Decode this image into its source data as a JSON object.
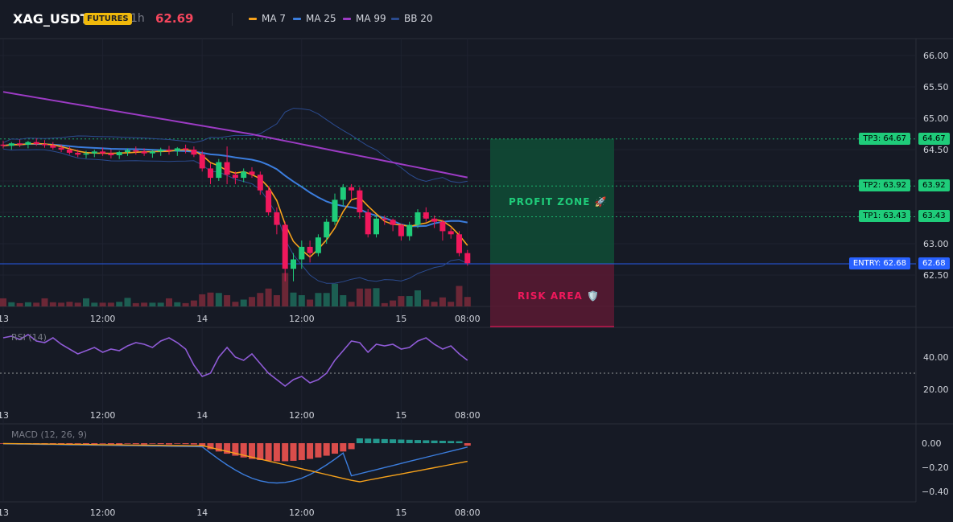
{
  "header": {
    "symbol": "XAG_USDT",
    "badge": "FUTURES",
    "timeframe": "1h",
    "price": "62.69",
    "indicators": [
      {
        "label": "MA 7",
        "color": "#f7a21b"
      },
      {
        "label": "MA 25",
        "color": "#3b7ddd"
      },
      {
        "label": "MA 99",
        "color": "#9c3bc4"
      },
      {
        "label": "BB 20",
        "color": "#2b4b8f"
      }
    ]
  },
  "x_axis": {
    "labels": [
      {
        "text": "13",
        "idx": 0
      },
      {
        "text": "12:00",
        "idx": 12
      },
      {
        "text": "14",
        "idx": 24
      },
      {
        "text": "12:00",
        "idx": 36
      },
      {
        "text": "15",
        "idx": 48
      },
      {
        "text": "08:00",
        "idx": 56
      }
    ]
  },
  "price_axis": {
    "ticks": [
      "66.00",
      "65.50",
      "65.00",
      "64.50",
      "63.00",
      "62.50"
    ]
  },
  "levels": [
    {
      "name": "tp3",
      "label": "TP3: 64.67",
      "value": 64.67,
      "value_label": "64.67"
    },
    {
      "name": "tp2",
      "label": "TP2: 63.92",
      "value": 63.92,
      "value_label": "63.92"
    },
    {
      "name": "tp1",
      "label": "TP1: 63.43",
      "value": 63.43,
      "value_label": "63.43"
    },
    {
      "name": "entry",
      "label": "ENTRY: 62.68",
      "value": 62.68,
      "value_label": "62.68"
    }
  ],
  "zones": {
    "profit_label": "PROFIT ZONE 🚀",
    "risk_label": "RISK AREA 🛡️"
  },
  "rsi": {
    "title": "RSI (14)",
    "ticks": [
      "40.00",
      "20.00"
    ]
  },
  "macd": {
    "title": "MACD (12, 26, 9)",
    "ticks": [
      "0.00",
      "−0.20",
      "−0.40"
    ]
  },
  "colors": {
    "up": "#1fcc7a",
    "down": "#f0185c",
    "profit": "#0f4d36",
    "risk": "#5a1a33",
    "entry": "#2962ff",
    "tp": "#1fcc7a"
  },
  "chart_data": {
    "type": "candlestick",
    "x": [
      "13",
      "12:00",
      "14",
      "12:00",
      "15",
      "08:00"
    ],
    "series": [
      {
        "name": "XAG_USDT",
        "ohlc": [
          [
            64.58,
            64.64,
            64.52,
            64.56
          ],
          [
            64.56,
            64.62,
            64.5,
            64.6
          ],
          [
            64.6,
            64.66,
            64.54,
            64.58
          ],
          [
            64.58,
            64.64,
            64.52,
            64.62
          ],
          [
            64.62,
            64.68,
            64.56,
            64.59
          ],
          [
            64.59,
            64.65,
            64.53,
            64.57
          ],
          [
            64.57,
            64.62,
            64.5,
            64.53
          ],
          [
            64.53,
            64.58,
            64.46,
            64.5
          ],
          [
            64.5,
            64.55,
            64.42,
            64.45
          ],
          [
            64.45,
            64.5,
            64.38,
            64.42
          ],
          [
            64.42,
            64.48,
            64.36,
            64.44
          ],
          [
            64.44,
            64.5,
            64.38,
            64.47
          ],
          [
            64.47,
            64.53,
            64.4,
            64.44
          ],
          [
            64.44,
            64.5,
            64.36,
            64.41
          ],
          [
            64.41,
            64.48,
            64.35,
            64.46
          ],
          [
            64.46,
            64.52,
            64.4,
            64.49
          ],
          [
            64.49,
            64.55,
            64.42,
            64.47
          ],
          [
            64.47,
            64.52,
            64.4,
            64.44
          ],
          [
            64.44,
            64.5,
            64.37,
            64.47
          ],
          [
            64.47,
            64.53,
            64.4,
            64.5
          ],
          [
            64.5,
            64.56,
            64.42,
            64.48
          ],
          [
            64.48,
            64.54,
            64.4,
            64.52
          ],
          [
            64.52,
            64.58,
            64.44,
            64.5
          ],
          [
            64.5,
            64.55,
            64.38,
            64.42
          ],
          [
            64.42,
            64.48,
            64.15,
            64.2
          ],
          [
            64.2,
            64.28,
            63.95,
            64.05
          ],
          [
            64.05,
            64.35,
            64.0,
            64.3
          ],
          [
            64.3,
            64.55,
            63.95,
            64.1
          ],
          [
            64.1,
            64.15,
            63.95,
            64.05
          ],
          [
            64.05,
            64.2,
            63.98,
            64.15
          ],
          [
            64.15,
            64.22,
            64.05,
            64.1
          ],
          [
            64.1,
            64.15,
            63.78,
            63.85
          ],
          [
            63.85,
            63.92,
            63.45,
            63.5
          ],
          [
            63.5,
            63.58,
            63.15,
            63.3
          ],
          [
            63.3,
            63.35,
            62.4,
            62.6
          ],
          [
            62.6,
            62.85,
            62.4,
            62.75
          ],
          [
            62.75,
            63.05,
            62.6,
            62.95
          ],
          [
            62.95,
            63.05,
            62.7,
            62.85
          ],
          [
            62.85,
            63.15,
            62.8,
            63.1
          ],
          [
            63.1,
            63.4,
            63.0,
            63.35
          ],
          [
            63.35,
            63.8,
            63.3,
            63.7
          ],
          [
            63.7,
            63.95,
            63.6,
            63.9
          ],
          [
            63.9,
            63.95,
            63.7,
            63.85
          ],
          [
            63.85,
            63.9,
            63.4,
            63.5
          ],
          [
            63.5,
            63.55,
            63.1,
            63.15
          ],
          [
            63.15,
            63.45,
            63.1,
            63.4
          ],
          [
            63.4,
            63.45,
            63.3,
            63.38
          ],
          [
            63.38,
            63.4,
            63.2,
            63.3
          ],
          [
            63.3,
            63.32,
            63.05,
            63.12
          ],
          [
            63.12,
            63.35,
            63.05,
            63.3
          ],
          [
            63.3,
            63.55,
            63.25,
            63.5
          ],
          [
            63.5,
            63.58,
            63.35,
            63.4
          ],
          [
            63.4,
            63.45,
            63.25,
            63.35
          ],
          [
            63.35,
            63.38,
            63.05,
            63.2
          ],
          [
            63.2,
            63.25,
            63.08,
            63.15
          ],
          [
            63.15,
            63.2,
            62.8,
            62.85
          ],
          [
            62.85,
            62.9,
            62.65,
            62.69
          ]
        ]
      }
    ]
  }
}
